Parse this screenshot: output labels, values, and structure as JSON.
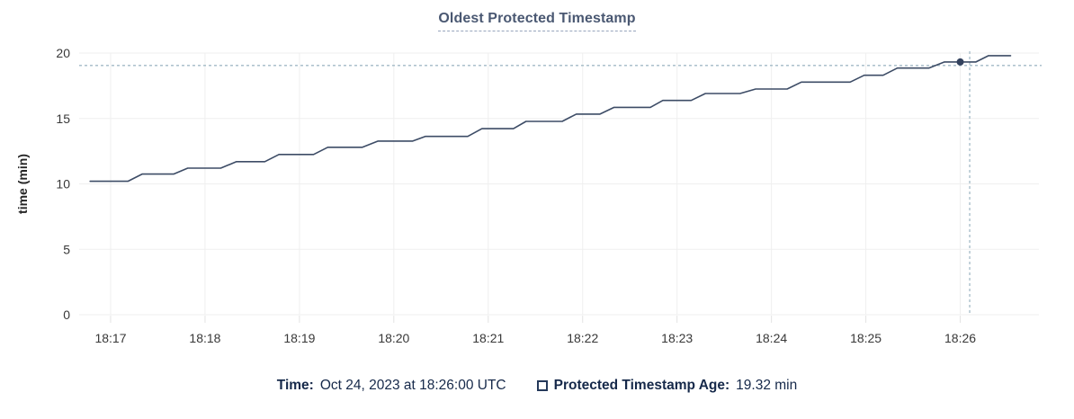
{
  "chart_data": {
    "type": "line",
    "title": "Oldest Protected Timestamp",
    "xlabel": "",
    "ylabel": "time (min)",
    "ylim": [
      0,
      20
    ],
    "y_ticks": [
      0,
      5,
      10,
      15,
      20
    ],
    "x_base_time": "18:17",
    "x_range_seconds": [
      -20,
      590
    ],
    "x_ticks": [
      {
        "seconds": 0,
        "label": "18:17"
      },
      {
        "seconds": 60,
        "label": "18:18"
      },
      {
        "seconds": 120,
        "label": "18:19"
      },
      {
        "seconds": 180,
        "label": "18:20"
      },
      {
        "seconds": 240,
        "label": "18:21"
      },
      {
        "seconds": 300,
        "label": "18:22"
      },
      {
        "seconds": 360,
        "label": "18:23"
      },
      {
        "seconds": 420,
        "label": "18:24"
      },
      {
        "seconds": 480,
        "label": "18:25"
      },
      {
        "seconds": 540,
        "label": "18:26"
      }
    ],
    "grid": true,
    "legend_position": "bottom",
    "series": [
      {
        "name": "Protected Timestamp Age",
        "points": [
          [
            -13,
            10.2
          ],
          [
            11,
            10.2
          ],
          [
            20,
            10.75
          ],
          [
            40,
            10.75
          ],
          [
            49,
            11.2
          ],
          [
            70,
            11.2
          ],
          [
            80,
            11.7
          ],
          [
            98,
            11.7
          ],
          [
            107,
            12.25
          ],
          [
            129,
            12.25
          ],
          [
            138,
            12.8
          ],
          [
            160,
            12.8
          ],
          [
            170,
            13.27
          ],
          [
            192,
            13.27
          ],
          [
            200,
            13.63
          ],
          [
            227,
            13.63
          ],
          [
            236,
            14.22
          ],
          [
            256,
            14.22
          ],
          [
            264,
            14.78
          ],
          [
            287,
            14.78
          ],
          [
            296,
            15.33
          ],
          [
            311,
            15.33
          ],
          [
            320,
            15.85
          ],
          [
            343,
            15.85
          ],
          [
            351,
            16.38
          ],
          [
            369,
            16.38
          ],
          [
            378,
            16.91
          ],
          [
            400,
            16.91
          ],
          [
            410,
            17.25
          ],
          [
            430,
            17.25
          ],
          [
            439,
            17.78
          ],
          [
            470,
            17.78
          ],
          [
            479,
            18.3
          ],
          [
            491,
            18.3
          ],
          [
            500,
            18.85
          ],
          [
            520,
            18.85
          ],
          [
            530,
            19.32
          ],
          [
            550,
            19.32
          ],
          [
            558,
            19.8
          ],
          [
            572,
            19.8
          ]
        ]
      }
    ],
    "hover": {
      "point_seconds": 540,
      "point_value": 19.32,
      "crosshair_x_seconds": 546,
      "crosshair_y_value": 19.05
    }
  },
  "legend": {
    "time_label": "Time:",
    "time_value": "Oct 24, 2023 at 18:26:00 UTC",
    "series_label": "Protected Timestamp Age:",
    "series_value": "19.32 min"
  },
  "colors": {
    "line": "#3d4c66",
    "dot": "#33425e",
    "grid": "#efefef",
    "tick_mark": "#e3e3e3",
    "crosshair": "#a3bac6",
    "tick_text": "#383838",
    "axis_title_text": "#242424",
    "title_text": "#4a5872",
    "legend_text": "#16294a"
  }
}
